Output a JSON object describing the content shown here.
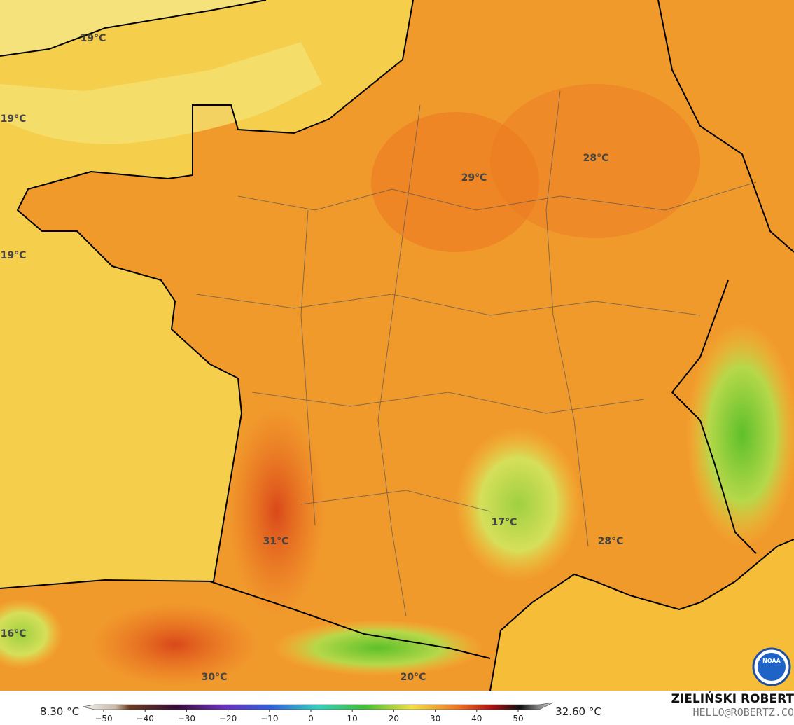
{
  "map": {
    "temperature_labels": [
      "19°C",
      "19°C",
      "19°C",
      "28°C",
      "29°C",
      "17°C",
      "31°C",
      "28°C",
      "16°C",
      "30°C",
      "20°C"
    ],
    "legend": {
      "min": "8.30 °C",
      "max": "32.60 °C",
      "ticks": [
        "−50",
        "−40",
        "−30",
        "−20",
        "−10",
        "0",
        "10",
        "20",
        "30",
        "40",
        "50"
      ]
    },
    "credit": {
      "name": "ZIELIŃSKI ROBERT",
      "contact": "HELLO@ROBERTZ.CO",
      "logo": "NOAA"
    }
  }
}
